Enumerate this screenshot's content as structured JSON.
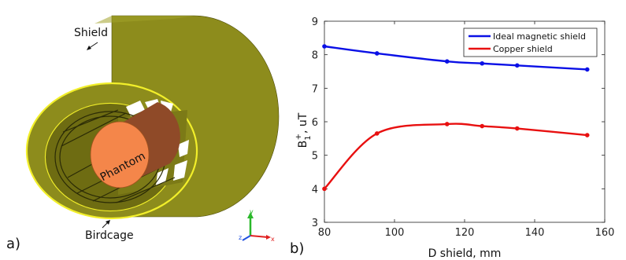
{
  "panel_a": {
    "label": "a)",
    "annotations": {
      "shield": "Shield",
      "phantom": "Phantom",
      "birdcage": "Birdcage"
    },
    "axes_triad": {
      "x": "x",
      "y": "y",
      "z": "z"
    },
    "colors": {
      "shield": "#8d8c1c",
      "shield_rim": "#f2ef2a",
      "phantom_face": "#f4864a",
      "phantom_side": "#8f4a28"
    }
  },
  "panel_b": {
    "label": "b)"
  },
  "chart_data": {
    "type": "line",
    "xlabel": "D shield, mm",
    "ylabel": "B1+, uT",
    "xlim": [
      80,
      160
    ],
    "ylim": [
      3,
      9
    ],
    "xticks": [
      80,
      100,
      120,
      140,
      160
    ],
    "yticks": [
      3,
      4,
      5,
      6,
      7,
      8,
      9
    ],
    "grid": false,
    "legend_position": "top-right",
    "series": [
      {
        "name": "Ideal magnetic shield",
        "color": "#0a10e6",
        "x": [
          80,
          95,
          115,
          125,
          135,
          155
        ],
        "y": [
          8.25,
          8.04,
          7.8,
          7.74,
          7.68,
          7.56
        ]
      },
      {
        "name": "Copper shield",
        "color": "#e81010",
        "x": [
          80,
          95,
          115,
          125,
          135,
          155
        ],
        "y": [
          4.0,
          5.65,
          5.93,
          5.87,
          5.8,
          5.6
        ]
      }
    ]
  }
}
